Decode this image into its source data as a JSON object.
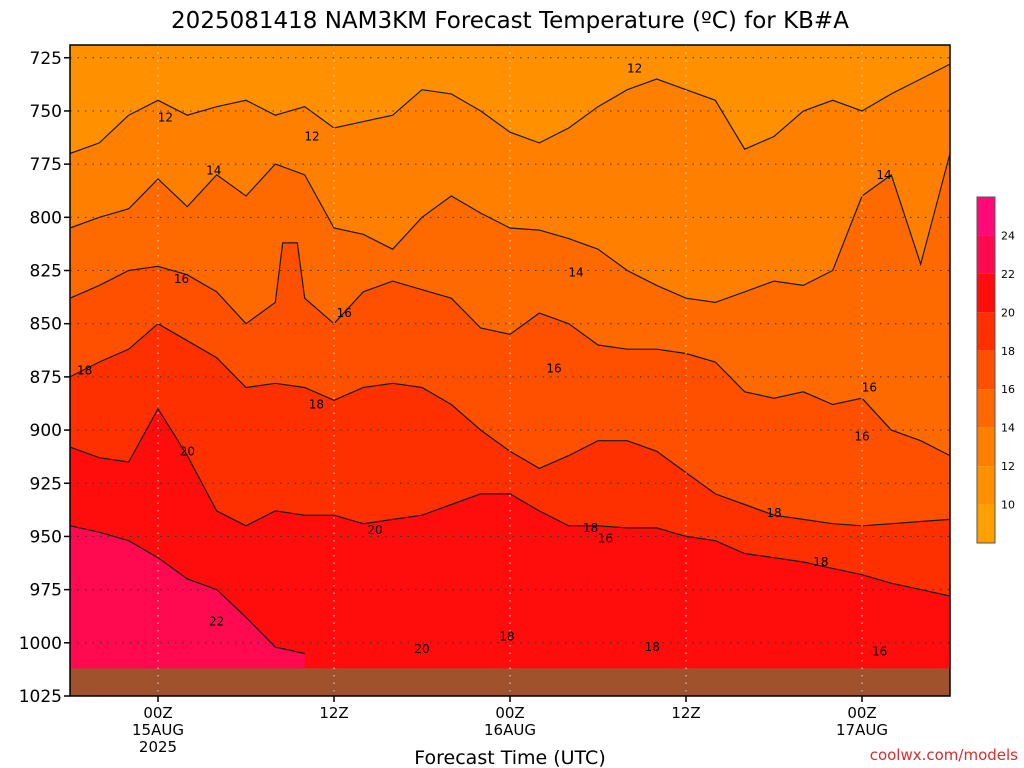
{
  "chart_data": {
    "type": "filled-contour",
    "title": "2025081418 NAM3KM Forecast Temperature (ºC) for KB#A",
    "xlabel": "Forecast Time (UTC)",
    "ylabel": "",
    "credit": "coolwx.com/models",
    "y_axis": {
      "ticks": [
        725,
        750,
        775,
        800,
        825,
        850,
        875,
        900,
        925,
        950,
        975,
        1000,
        1025
      ],
      "ylim": [
        1025,
        719
      ],
      "inverted": true
    },
    "x_axis": {
      "ticks": [
        {
          "hour": 0,
          "lines": [
            "00Z",
            "15AUG",
            "2025"
          ]
        },
        {
          "hour": 12,
          "lines": [
            "12Z"
          ]
        },
        {
          "hour": 24,
          "lines": [
            "00Z",
            "16AUG"
          ]
        },
        {
          "hour": 36,
          "lines": [
            "12Z"
          ]
        },
        {
          "hour": 48,
          "lines": [
            "00Z",
            "17AUG"
          ]
        }
      ],
      "xlim": [
        -6,
        54
      ]
    },
    "colorbar": {
      "levels": [
        8,
        10,
        12,
        14,
        16,
        18,
        20,
        22,
        24,
        26
      ],
      "labels": [
        10,
        12,
        14,
        16,
        18,
        20,
        22,
        24
      ],
      "colors": [
        "#ffa000",
        "#ff9000",
        "#ff8000",
        "#ff6a00",
        "#ff5000",
        "#ff3000",
        "#ff0d0d",
        "#ff0a50",
        "#ff0a78"
      ]
    },
    "temperature_profile": {
      "pressure": [
        725,
        750,
        775,
        800,
        825,
        850,
        875,
        900,
        925,
        950,
        975,
        1000,
        1010
      ],
      "temp_c": [
        11,
        12.5,
        13.5,
        14.5,
        15.5,
        16.5,
        17.5,
        18.5,
        19.5,
        20,
        20.5,
        21,
        21
      ]
    },
    "contours": [
      {
        "level": 12,
        "pressure_by_time": [
          [
            -6,
            770
          ],
          [
            -4,
            765
          ],
          [
            -2,
            752
          ],
          [
            0,
            745
          ],
          [
            2,
            752
          ],
          [
            4,
            748
          ],
          [
            6,
            745
          ],
          [
            8,
            752
          ],
          [
            10,
            748
          ],
          [
            12,
            758
          ],
          [
            14,
            755
          ],
          [
            16,
            752
          ],
          [
            18,
            740
          ],
          [
            20,
            742
          ],
          [
            22,
            750
          ],
          [
            24,
            760
          ],
          [
            26,
            765
          ],
          [
            28,
            758
          ],
          [
            30,
            748
          ],
          [
            32,
            740
          ],
          [
            34,
            735
          ],
          [
            36,
            740
          ],
          [
            38,
            745
          ],
          [
            40,
            768
          ],
          [
            42,
            762
          ],
          [
            44,
            750
          ],
          [
            46,
            745
          ],
          [
            48,
            750
          ],
          [
            50,
            742
          ],
          [
            52,
            735
          ],
          [
            54,
            728
          ]
        ]
      },
      {
        "level": 14,
        "pressure_by_time": [
          [
            -6,
            805
          ],
          [
            -4,
            800
          ],
          [
            -2,
            796
          ],
          [
            0,
            782
          ],
          [
            2,
            795
          ],
          [
            4,
            780
          ],
          [
            6,
            790
          ],
          [
            8,
            775
          ],
          [
            10,
            780
          ],
          [
            12,
            805
          ],
          [
            14,
            808
          ],
          [
            16,
            815
          ],
          [
            18,
            800
          ],
          [
            20,
            790
          ],
          [
            22,
            798
          ],
          [
            24,
            805
          ],
          [
            26,
            806
          ],
          [
            28,
            810
          ],
          [
            30,
            815
          ],
          [
            32,
            825
          ],
          [
            34,
            832
          ],
          [
            36,
            838
          ],
          [
            38,
            840
          ],
          [
            40,
            835
          ],
          [
            42,
            830
          ],
          [
            44,
            832
          ],
          [
            46,
            825
          ],
          [
            48,
            790
          ],
          [
            50,
            780
          ],
          [
            52,
            822
          ],
          [
            54,
            770
          ]
        ]
      },
      {
        "level": 16,
        "pressure_by_time": [
          [
            -6,
            838
          ],
          [
            -4,
            832
          ],
          [
            -2,
            825
          ],
          [
            0,
            823
          ],
          [
            2,
            827
          ],
          [
            4,
            835
          ],
          [
            6,
            850
          ],
          [
            8,
            840
          ],
          [
            8.5,
            812
          ],
          [
            9.5,
            812
          ],
          [
            10,
            838
          ],
          [
            12,
            850
          ],
          [
            14,
            835
          ],
          [
            16,
            830
          ],
          [
            18,
            834
          ],
          [
            20,
            838
          ],
          [
            22,
            852
          ],
          [
            24,
            855
          ],
          [
            26,
            845
          ],
          [
            28,
            850
          ],
          [
            30,
            860
          ],
          [
            32,
            862
          ],
          [
            34,
            862
          ],
          [
            36,
            864
          ],
          [
            38,
            868
          ],
          [
            40,
            882
          ],
          [
            42,
            885
          ],
          [
            44,
            882
          ],
          [
            46,
            888
          ],
          [
            48,
            885
          ],
          [
            50,
            900
          ],
          [
            52,
            905
          ],
          [
            54,
            912
          ]
        ]
      },
      {
        "level": 18,
        "pressure_by_time": [
          [
            -6,
            875
          ],
          [
            -4,
            868
          ],
          [
            -2,
            862
          ],
          [
            0,
            850
          ],
          [
            2,
            858
          ],
          [
            4,
            866
          ],
          [
            6,
            880
          ],
          [
            8,
            878
          ],
          [
            10,
            880
          ],
          [
            12,
            886
          ],
          [
            14,
            880
          ],
          [
            16,
            878
          ],
          [
            18,
            880
          ],
          [
            20,
            888
          ],
          [
            22,
            900
          ],
          [
            24,
            910
          ],
          [
            26,
            918
          ],
          [
            28,
            912
          ],
          [
            30,
            905
          ],
          [
            32,
            905
          ],
          [
            34,
            910
          ],
          [
            36,
            920
          ],
          [
            38,
            930
          ],
          [
            40,
            935
          ],
          [
            42,
            940
          ],
          [
            44,
            942
          ],
          [
            46,
            944
          ],
          [
            48,
            945
          ],
          [
            50,
            944
          ],
          [
            52,
            943
          ],
          [
            54,
            942
          ]
        ]
      },
      {
        "level": 20,
        "pressure_by_time": [
          [
            -6,
            908
          ],
          [
            -4,
            913
          ],
          [
            -2,
            915
          ],
          [
            0,
            890
          ],
          [
            2,
            912
          ],
          [
            4,
            938
          ],
          [
            6,
            945
          ],
          [
            8,
            938
          ],
          [
            10,
            940
          ],
          [
            12,
            940
          ],
          [
            14,
            944
          ],
          [
            16,
            942
          ],
          [
            18,
            940
          ],
          [
            20,
            935
          ],
          [
            22,
            930
          ],
          [
            24,
            930
          ],
          [
            26,
            938
          ],
          [
            28,
            945
          ],
          [
            30,
            945
          ],
          [
            32,
            946
          ],
          [
            34,
            946
          ],
          [
            36,
            950
          ],
          [
            38,
            952
          ],
          [
            40,
            958
          ],
          [
            42,
            960
          ],
          [
            44,
            962
          ],
          [
            46,
            965
          ],
          [
            48,
            968
          ],
          [
            50,
            972
          ],
          [
            52,
            975
          ],
          [
            54,
            978
          ]
        ]
      },
      {
        "level": 22,
        "pressure_by_time": [
          [
            -6,
            945
          ],
          [
            -4,
            948
          ],
          [
            -2,
            952
          ],
          [
            0,
            960
          ],
          [
            2,
            970
          ],
          [
            4,
            975
          ],
          [
            6,
            988
          ],
          [
            8,
            1002
          ],
          [
            10,
            1005
          ]
        ]
      }
    ],
    "contour_labels": [
      {
        "value": "12",
        "hour": 0.5,
        "pressure": 753
      },
      {
        "value": "12",
        "hour": 10.5,
        "pressure": 762
      },
      {
        "value": "12",
        "hour": 32.5,
        "pressure": 730
      },
      {
        "value": "14",
        "hour": 3.8,
        "pressure": 778
      },
      {
        "value": "14",
        "hour": 28.5,
        "pressure": 826
      },
      {
        "value": "14",
        "hour": 49.5,
        "pressure": 780
      },
      {
        "value": "16",
        "hour": 1.6,
        "pressure": 829
      },
      {
        "value": "16",
        "hour": 12.7,
        "pressure": 845
      },
      {
        "value": "16",
        "hour": 27.0,
        "pressure": 871
      },
      {
        "value": "16",
        "hour": 48.5,
        "pressure": 880
      },
      {
        "value": "16",
        "hour": 48.0,
        "pressure": 903
      },
      {
        "value": "16",
        "hour": 30.5,
        "pressure": 951
      },
      {
        "value": "16",
        "hour": 49.2,
        "pressure": 1004
      },
      {
        "value": "18",
        "hour": -5.0,
        "pressure": 872
      },
      {
        "value": "18",
        "hour": 10.8,
        "pressure": 888
      },
      {
        "value": "18",
        "hour": 29.5,
        "pressure": 946
      },
      {
        "value": "18",
        "hour": 42.0,
        "pressure": 939
      },
      {
        "value": "18",
        "hour": 45.2,
        "pressure": 962
      },
      {
        "value": "18",
        "hour": 23.8,
        "pressure": 997
      },
      {
        "value": "18",
        "hour": 33.7,
        "pressure": 1002
      },
      {
        "value": "20",
        "hour": 2.0,
        "pressure": 910
      },
      {
        "value": "20",
        "hour": 14.8,
        "pressure": 947
      },
      {
        "value": "20",
        "hour": 18.0,
        "pressure": 1003
      },
      {
        "value": "22",
        "hour": 4.0,
        "pressure": 990
      }
    ]
  }
}
